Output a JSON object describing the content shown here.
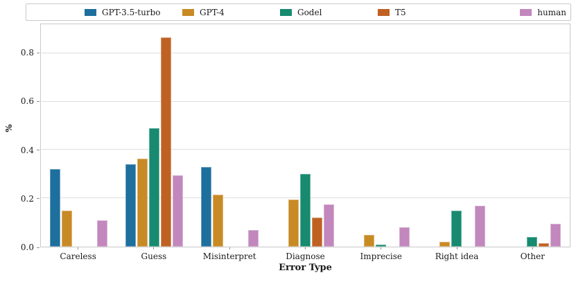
{
  "chart_data": {
    "type": "bar",
    "title": "",
    "xlabel": "Error Type",
    "ylabel": "%",
    "categories": [
      "Careless",
      "Guess",
      "Misinterpret",
      "Diagnose",
      "Imprecise",
      "Right idea",
      "Other"
    ],
    "series": [
      {
        "name": "GPT-3.5-turbo",
        "color": "#1d6f9e",
        "values": [
          0.32,
          0.34,
          0.33,
          0,
          0,
          0,
          0
        ]
      },
      {
        "name": "GPT-4",
        "color": "#c88a25",
        "values": [
          0.15,
          0.365,
          0.215,
          0.195,
          0.05,
          0.02,
          0
        ]
      },
      {
        "name": "Godel",
        "color": "#178a70",
        "values": [
          0,
          0.49,
          0,
          0.3,
          0.01,
          0.15,
          0.04
        ]
      },
      {
        "name": "T5",
        "color": "#bf6123",
        "values": [
          0,
          0.865,
          0,
          0.12,
          0,
          0,
          0.015
        ]
      },
      {
        "name": "human",
        "color": "#c287bd",
        "values": [
          0.11,
          0.295,
          0.07,
          0.175,
          0.08,
          0.17,
          0.095
        ]
      }
    ],
    "yticks": [
      0.0,
      0.2,
      0.4,
      0.6,
      0.8
    ],
    "ytick_labels": [
      "0.0",
      "0.2",
      "0.4",
      "0.6",
      "0.8"
    ],
    "ylim": [
      0,
      0.92
    ],
    "grid": "horizontal",
    "legend_position": "top",
    "colors": {
      "gridline": "#dedede",
      "spine": "#c9c9c9",
      "tick": "#8f8f8f",
      "text": "#1a1a1a",
      "background": "#ffffff"
    }
  }
}
